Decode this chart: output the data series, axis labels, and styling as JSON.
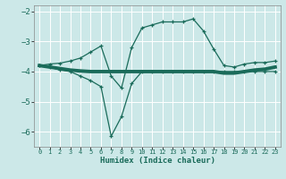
{
  "xlabel": "Humidex (Indice chaleur)",
  "x": [
    0,
    1,
    2,
    3,
    4,
    5,
    6,
    7,
    8,
    9,
    10,
    11,
    12,
    13,
    14,
    15,
    16,
    17,
    18,
    19,
    20,
    21,
    22,
    23
  ],
  "line1": [
    -3.8,
    -3.85,
    -3.95,
    -4.0,
    -4.15,
    -4.3,
    -4.5,
    -6.15,
    -5.5,
    -4.4,
    -4.0,
    -4.0,
    -4.0,
    -4.0,
    -4.0,
    -4.0,
    -4.0,
    -4.0,
    -4.0,
    -4.0,
    -4.0,
    -4.0,
    -4.0,
    -4.0
  ],
  "line2": [
    -3.8,
    -3.75,
    -3.72,
    -3.65,
    -3.55,
    -3.35,
    -3.15,
    -4.15,
    -4.55,
    -3.2,
    -2.55,
    -2.45,
    -2.35,
    -2.35,
    -2.35,
    -2.25,
    -2.65,
    -3.25,
    -3.8,
    -3.85,
    -3.75,
    -3.7,
    -3.7,
    -3.65
  ],
  "line3": [
    -3.8,
    -3.85,
    -3.9,
    -3.95,
    -3.98,
    -4.0,
    -4.0,
    -4.0,
    -4.0,
    -4.0,
    -4.0,
    -4.0,
    -4.0,
    -4.0,
    -4.0,
    -4.0,
    -4.0,
    -4.0,
    -4.05,
    -4.05,
    -4.0,
    -3.95,
    -3.92,
    -3.85
  ],
  "bg_color": "#cce8e8",
  "grid_color": "#ffffff",
  "line_color": "#1a6b5a",
  "ylim": [
    -6.5,
    -1.8
  ],
  "xlim": [
    -0.5,
    23.5
  ],
  "yticks": [
    -2,
    -3,
    -4,
    -5,
    -6
  ],
  "xticks": [
    0,
    1,
    2,
    3,
    4,
    5,
    6,
    7,
    8,
    9,
    10,
    11,
    12,
    13,
    14,
    15,
    16,
    17,
    18,
    19,
    20,
    21,
    22,
    23
  ]
}
